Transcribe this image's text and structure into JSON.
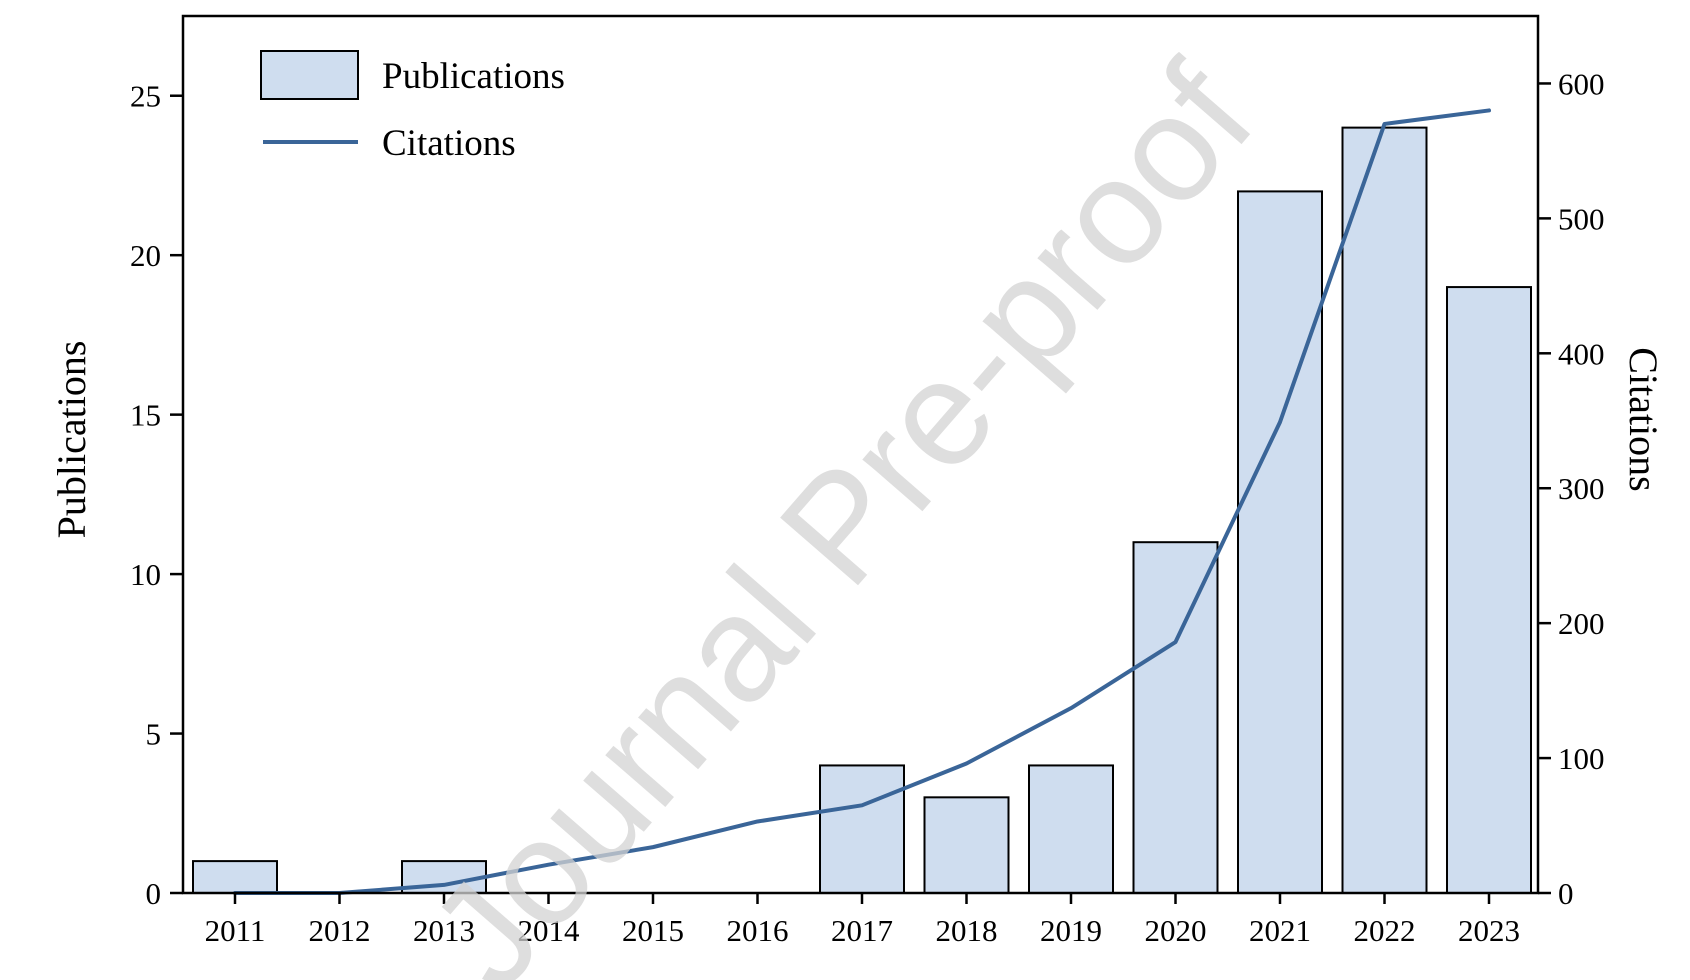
{
  "watermark": "Journal Pre-proof",
  "chart_data": {
    "type": "bar",
    "categories": [
      "2011",
      "2012",
      "2013",
      "2014",
      "2015",
      "2016",
      "2017",
      "2018",
      "2019",
      "2020",
      "2021",
      "2022",
      "2023"
    ],
    "series": [
      {
        "name": "Publications",
        "type": "bar",
        "axis": "left",
        "values": [
          1,
          0,
          1,
          0,
          0,
          0,
          4,
          3,
          4,
          11,
          22,
          24,
          19
        ]
      },
      {
        "name": "Citations",
        "type": "line",
        "axis": "right",
        "values": [
          0,
          0,
          6,
          21,
          34,
          53,
          65,
          96,
          137,
          186,
          349,
          570,
          580
        ]
      }
    ],
    "title": "",
    "xlabel": "",
    "ylabel": "Publications",
    "y2label": "Citations",
    "ylim": [
      0,
      27.5
    ],
    "y2lim": [
      0,
      650
    ],
    "yticks": [
      "0",
      "5",
      "10",
      "15",
      "20",
      "25"
    ],
    "y2ticks": [
      "0",
      "100",
      "200",
      "300",
      "400",
      "500",
      "600"
    ],
    "grid": false,
    "legend": {
      "position": "top-left",
      "entries": [
        "Publications",
        "Citations"
      ]
    },
    "colors": {
      "bar_fill": "#cfddef",
      "bar_stroke": "#000000",
      "line": "#3a6598"
    }
  }
}
